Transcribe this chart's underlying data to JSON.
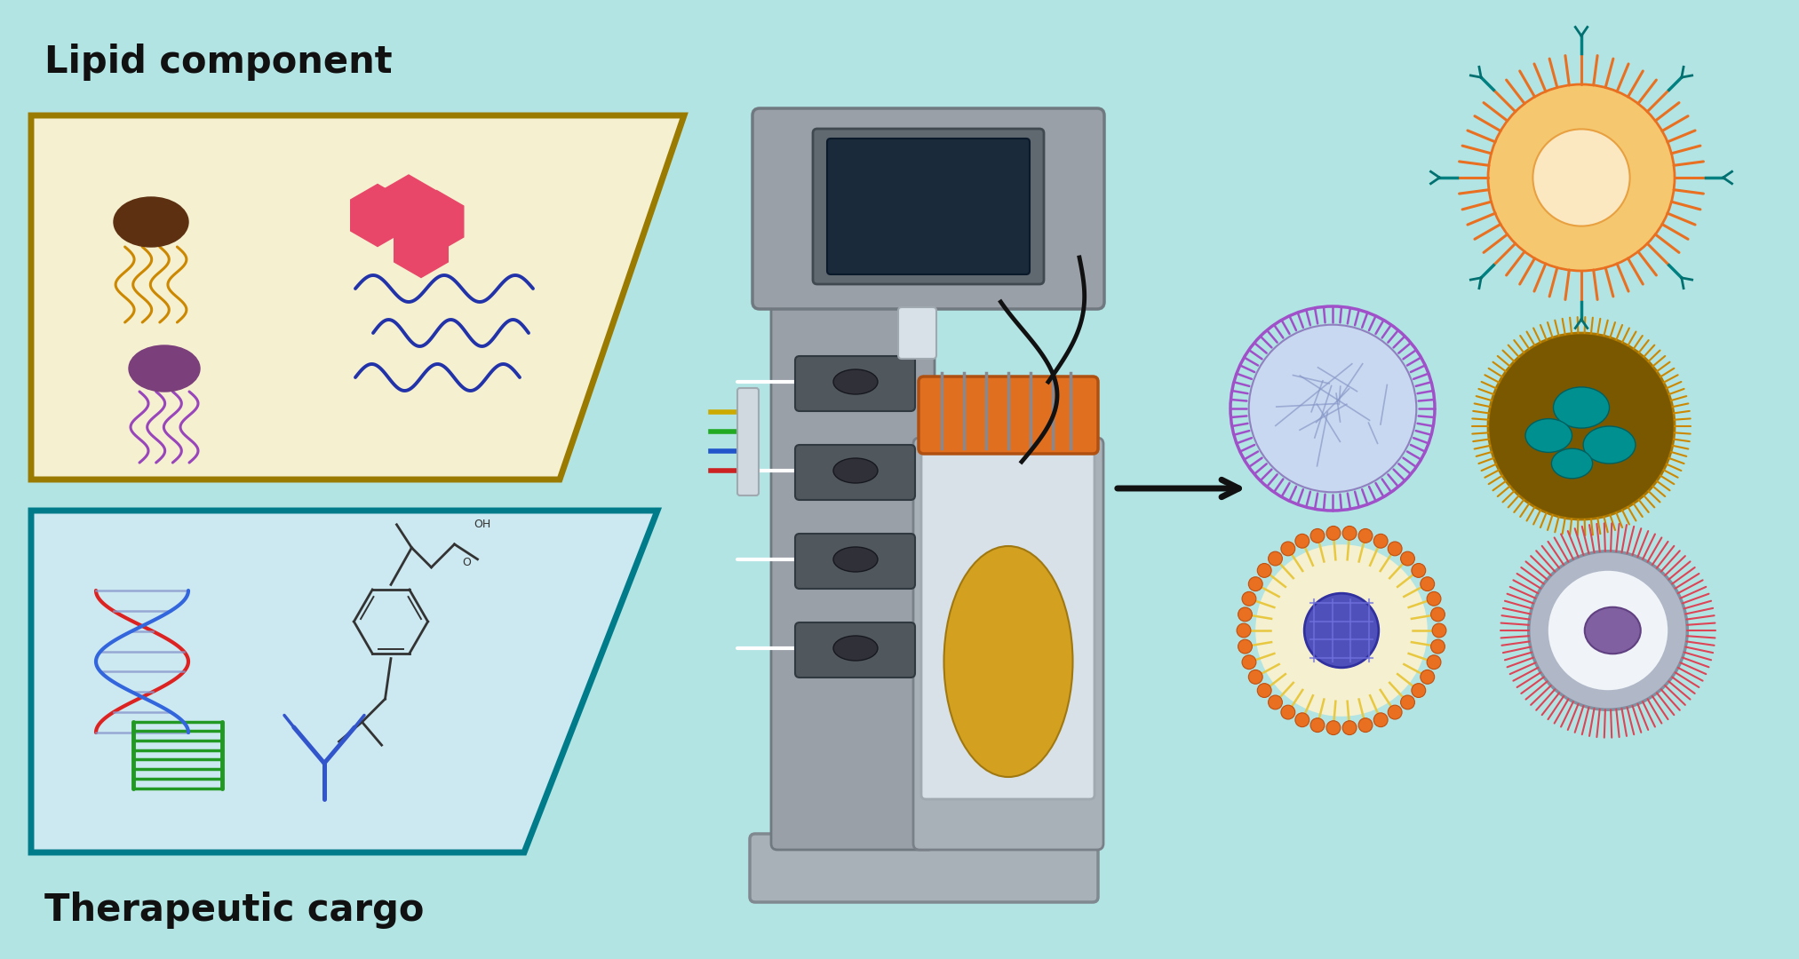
{
  "bg": "#b2e4e4",
  "lipid_box_fill": "#f5f0d0",
  "lipid_box_edge": "#9B7A00",
  "cargo_box_fill": "#cce8f0",
  "cargo_box_edge": "#007B8A",
  "label_lipid": "Lipid component",
  "label_cargo": "Therapeutic cargo",
  "label_color": "#111111",
  "jf1_body": "#5C3010",
  "jf1_tent": "#CC8800",
  "jf2_body": "#7B3F7B",
  "jf2_tent": "#9945BB",
  "hex_color": "#E8476A",
  "wavy_color": "#2233AA",
  "dna_blue": "#3366DD",
  "dna_red": "#DD2222",
  "ladder_green": "#229922",
  "antibody_blue": "#3355CC",
  "chem_color": "#333333",
  "device_body": "#9AA0A8",
  "device_dark": "#707880",
  "device_light": "#B0B8C0",
  "device_screen_bg": "#606870",
  "device_screen": "#1A2A3A",
  "device_orange": "#E07020",
  "device_flask_liquid": "#D4A020",
  "device_valve": "#505860",
  "arrow_color": "#111111",
  "np1_spikes": "#E87020",
  "np1_fill": "#F5C880",
  "np1_inner": "#F8E8C0",
  "np1_teal": "#008080",
  "np2_ring": "#A050C8",
  "np2_fill": "#D0D8F0",
  "np2_inner": "#B8C8E8",
  "np3_hair": "#CC8800",
  "np3_fill": "#7A5800",
  "np3_spots": "#008888",
  "np4_bead": "#E87020",
  "np4_tail": "#E8C860",
  "np4_fill": "#F5F0D0",
  "np4_cargo": "#5050BB",
  "np5_hair": "#DD4455",
  "np5_gray": "#9098A8",
  "np5_white": "#F0F4F8",
  "np5_cargo": "#8060A0"
}
